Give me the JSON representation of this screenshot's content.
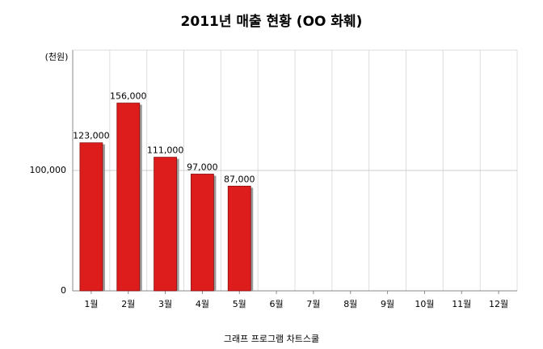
{
  "chart_data": {
    "type": "bar",
    "title": "2011년 매출 현황 (OO 화훼)",
    "y_unit_label": "(천원)",
    "x_label": "그래프 프로그램 차트스쿨",
    "categories": [
      "1월",
      "2월",
      "3월",
      "4월",
      "5월",
      "6월",
      "7월",
      "8월",
      "9월",
      "10월",
      "11월",
      "12월"
    ],
    "values": [
      123000,
      156000,
      111000,
      97000,
      87000,
      null,
      null,
      null,
      null,
      null,
      null,
      null
    ],
    "value_labels": [
      "123,000",
      "156,000",
      "111,000",
      "97,000",
      "87,000",
      null,
      null,
      null,
      null,
      null,
      null,
      null
    ],
    "color": "#dd1c1c",
    "ylim": [
      0,
      200000
    ],
    "yticks": [
      0,
      {
        "value": 100000,
        "label": "100,000"
      }
    ],
    "grid": true
  }
}
